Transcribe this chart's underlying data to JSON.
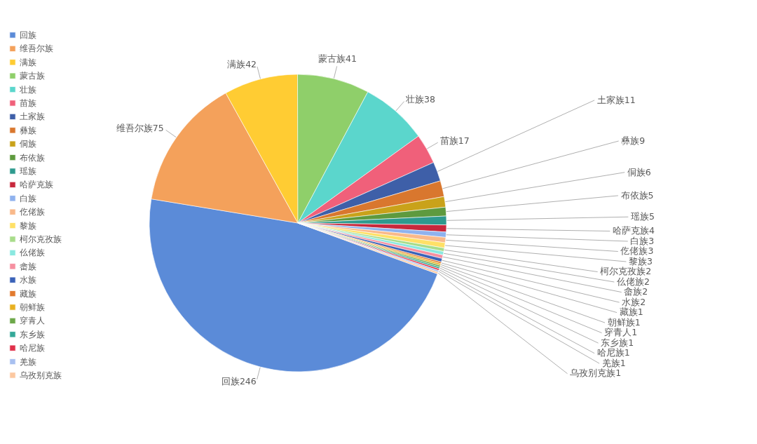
{
  "chart_data": {
    "type": "pie",
    "categories": [
      "回族",
      "维吾尔族",
      "满族",
      "蒙古族",
      "壮族",
      "苗族",
      "土家族",
      "彝族",
      "侗族",
      "布依族",
      "瑶族",
      "哈萨克族",
      "白族",
      "仡佬族",
      "黎族",
      "柯尔克孜族",
      "仫佬族",
      "畲族",
      "水族",
      "藏族",
      "朝鲜族",
      "穿青人",
      "东乡族",
      "哈尼族",
      "羌族",
      "乌孜别克族"
    ],
    "values": [
      246,
      75,
      42,
      41,
      38,
      17,
      11,
      9,
      6,
      5,
      5,
      4,
      3,
      3,
      3,
      2,
      2,
      2,
      2,
      1,
      1,
      1,
      1,
      1,
      1,
      1
    ],
    "colors": [
      "#5b8bd8",
      "#f4a15b",
      "#ffcc33",
      "#8fcf6a",
      "#5bd6cc",
      "#f0607a",
      "#3e5fa8",
      "#d9772e",
      "#c9a21a",
      "#5e9a3e",
      "#2e9a8e",
      "#c8283c",
      "#8fb2ee",
      "#f9b98a",
      "#ffe066",
      "#a8dc8a",
      "#8ae8e0",
      "#f68fa0",
      "#3a62b8",
      "#e27a2e",
      "#e8b020",
      "#6da84a",
      "#34a898",
      "#e0304a",
      "#a8c0f0",
      "#fcc8a0"
    ],
    "data_labels": true,
    "legend": "left"
  }
}
